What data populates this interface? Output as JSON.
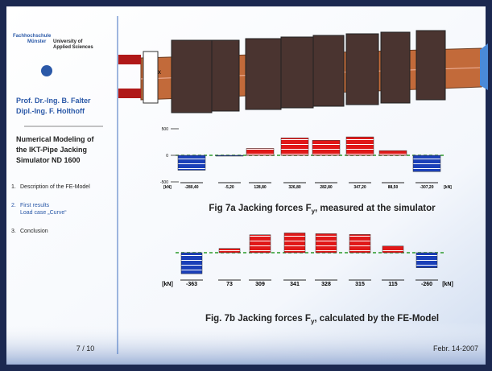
{
  "sidebar": {
    "institution": [
      "Fachhochschule",
      "Münster",
      "University of",
      "Applied Sciences"
    ],
    "authors": [
      "Prof. Dr.-Ing. B. Falter",
      "Dipl.-Ing. F. Holthoff"
    ],
    "title": [
      "Numerical Modeling of",
      "the IKT-Pipe Jacking",
      "Simulator ND 1600"
    ],
    "outline": [
      {
        "number": "1.",
        "text": "Description of the FE-Model"
      },
      {
        "number": "2.",
        "text": "First results",
        "sub": "Load case „Curve“"
      },
      {
        "number": "3.",
        "text": "Conclusion"
      }
    ],
    "page": "7 / 10"
  },
  "footer_date": "Febr. 14-2007",
  "pipe_axis_label": "x",
  "figure_a": {
    "caption": "Fig 7a  Jacking forces F",
    "caption_sub": "y",
    "caption_end": ", measured at the simulator",
    "unit": "[kN]",
    "yticks": [
      500,
      0,
      -500
    ],
    "values": [
      -280.4,
      -5.2,
      128.8,
      326.8,
      282.8,
      347.2,
      88.5,
      -307.2
    ],
    "value_labels": [
      "-280,40",
      "-5,20",
      "128,80",
      "326,80",
      "282,80",
      "347,20",
      "88,50",
      "-307,20"
    ]
  },
  "figure_b": {
    "caption": "Fig. 7b  Jacking forces F",
    "caption_sub": "y",
    "caption_end": ", calculated by the FE-Model",
    "unit": "[kN]",
    "values": [
      -363,
      73,
      309,
      341,
      328,
      315,
      115,
      -260
    ]
  }
}
